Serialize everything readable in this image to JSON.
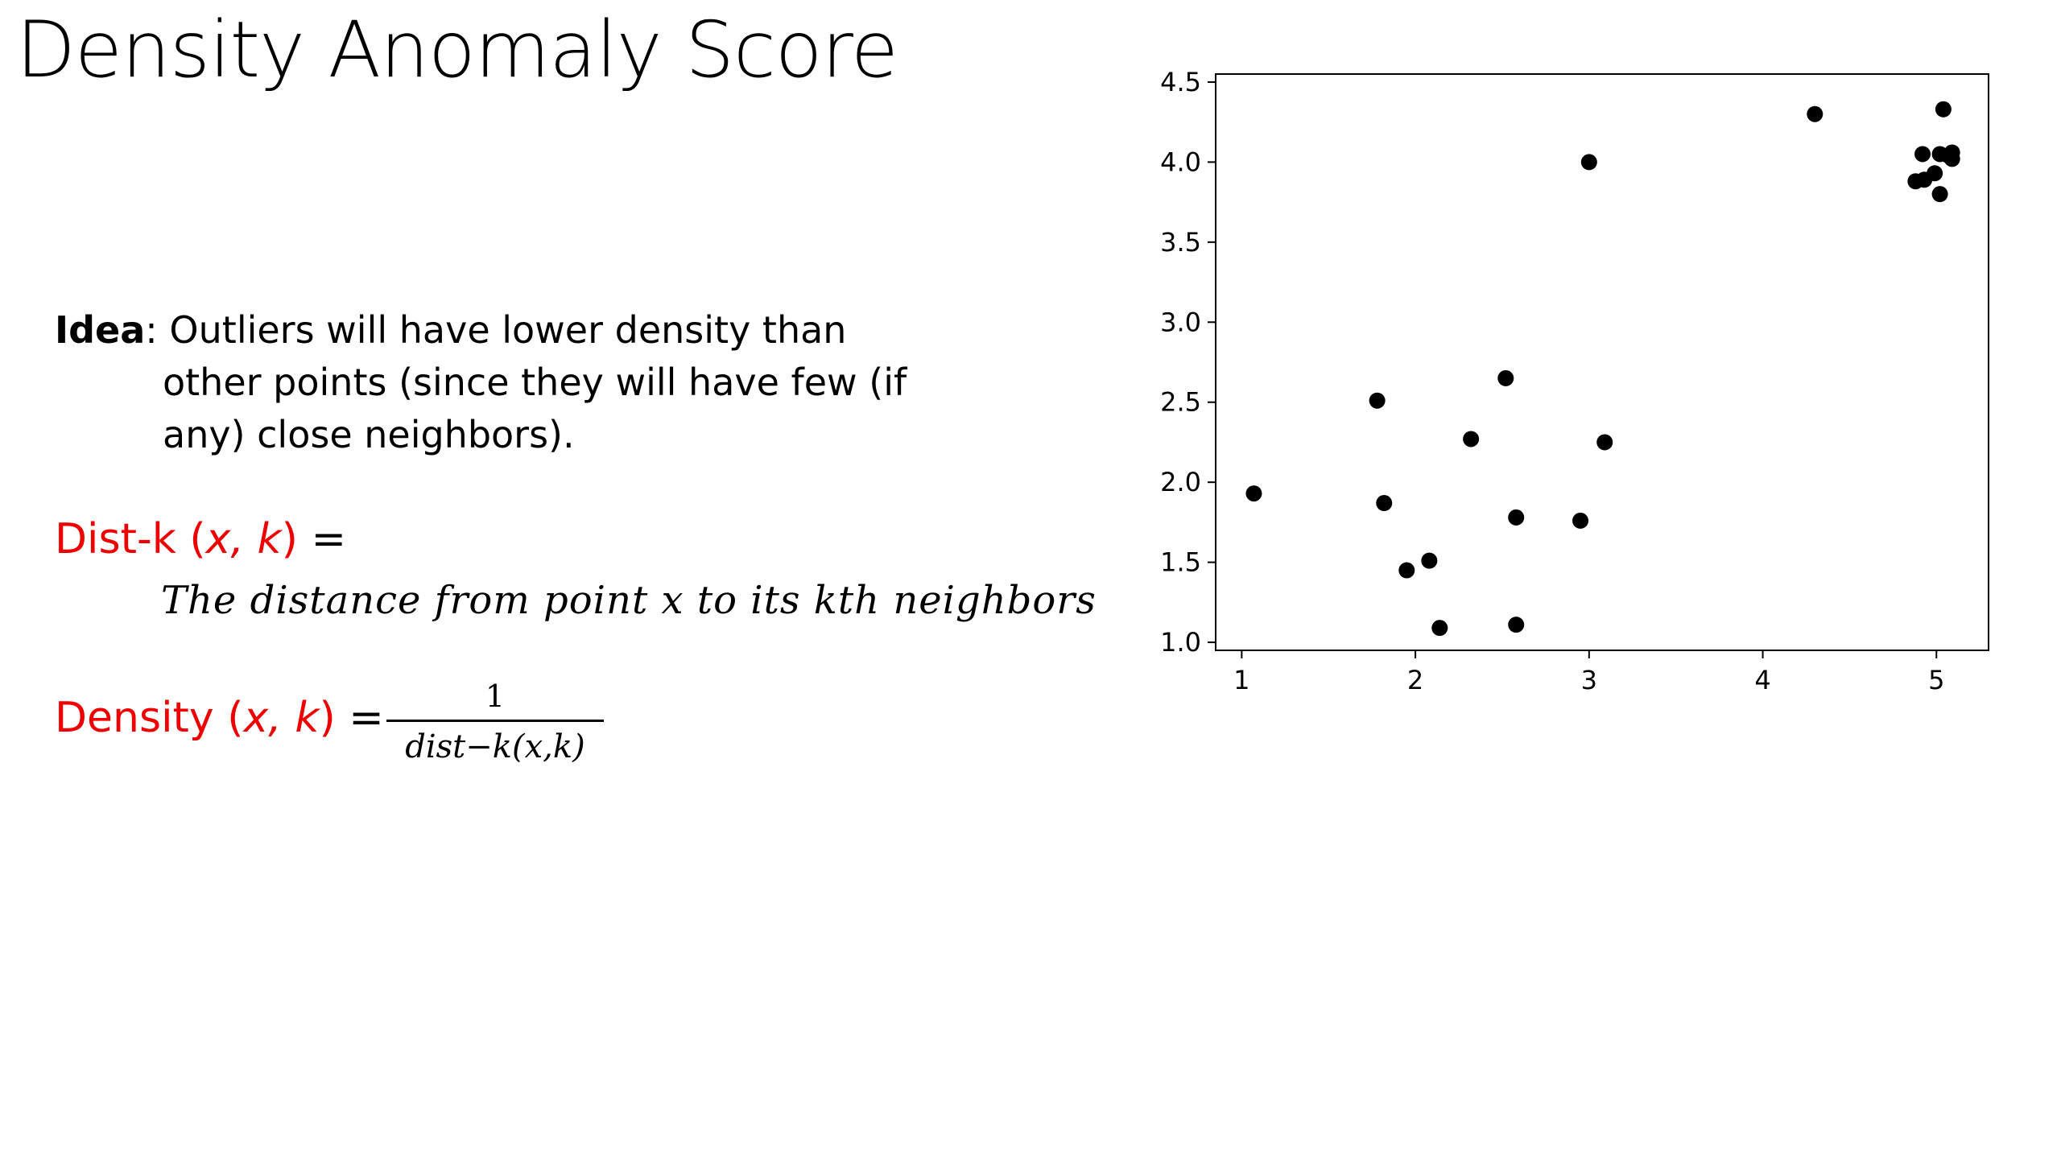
{
  "slide": {
    "title": "Density Anomaly Score"
  },
  "idea": {
    "label": "Idea",
    "line1": ":  Outliers will have lower density than",
    "line2": "other points (since they will have few (if",
    "line3": "any) close neighbors)."
  },
  "distk": {
    "name": "Dist-k (",
    "args": "x, k",
    "close": ")",
    "equals": " =",
    "definition": "The distance from point x to its kth neighbors"
  },
  "density": {
    "name": "Density (",
    "args": "x, k",
    "close": ")",
    "equals": " =",
    "numerator": "1",
    "denominator": "dist−k(x,k)"
  },
  "colors": {
    "accent": "#ee0000",
    "text": "#000000",
    "points": "#000000"
  },
  "chart_data": {
    "type": "scatter",
    "title": "",
    "xlabel": "",
    "ylabel": "",
    "xlim": [
      0.85,
      5.3
    ],
    "ylim": [
      0.95,
      4.55
    ],
    "xticks": [
      1,
      2,
      3,
      4,
      5
    ],
    "xtick_labels": [
      "1",
      "2",
      "3",
      "4",
      "5"
    ],
    "yticks": [
      1.0,
      1.5,
      2.0,
      2.5,
      3.0,
      3.5,
      4.0,
      4.5
    ],
    "ytick_labels": [
      "1.0",
      "1.5",
      "2.0",
      "2.5",
      "3.0",
      "3.5",
      "4.0",
      "4.5"
    ],
    "grid": false,
    "legend": "none",
    "series": [
      {
        "points": [
          {
            "x": 1.07,
            "y": 1.93
          },
          {
            "x": 1.78,
            "y": 2.51
          },
          {
            "x": 1.82,
            "y": 1.87
          },
          {
            "x": 1.95,
            "y": 1.45
          },
          {
            "x": 2.08,
            "y": 1.51
          },
          {
            "x": 2.14,
            "y": 1.09
          },
          {
            "x": 2.32,
            "y": 2.27
          },
          {
            "x": 2.52,
            "y": 2.65
          },
          {
            "x": 2.58,
            "y": 1.78
          },
          {
            "x": 2.58,
            "y": 1.11
          },
          {
            "x": 2.95,
            "y": 1.76
          },
          {
            "x": 3.0,
            "y": 4.0
          },
          {
            "x": 3.09,
            "y": 2.25
          },
          {
            "x": 4.3,
            "y": 4.3
          },
          {
            "x": 4.88,
            "y": 3.88
          },
          {
            "x": 4.93,
            "y": 3.89
          },
          {
            "x": 4.92,
            "y": 4.05
          },
          {
            "x": 4.99,
            "y": 3.93
          },
          {
            "x": 5.02,
            "y": 4.05
          },
          {
            "x": 5.04,
            "y": 4.33
          },
          {
            "x": 5.02,
            "y": 3.8
          },
          {
            "x": 5.07,
            "y": 4.04
          },
          {
            "x": 5.09,
            "y": 4.06
          },
          {
            "x": 5.09,
            "y": 4.02
          }
        ]
      }
    ]
  }
}
